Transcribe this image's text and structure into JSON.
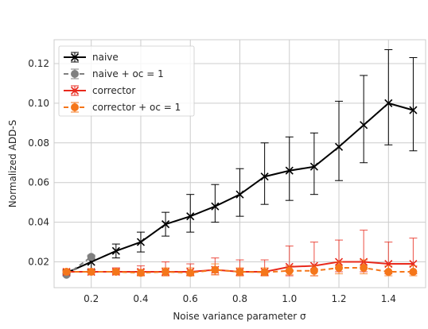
{
  "chart_data": {
    "type": "line",
    "xlabel": "Noise variance parameter σ",
    "ylabel": "Normalized ADD-S",
    "xlim": [
      0.05,
      1.55
    ],
    "ylim": [
      0.007,
      0.132
    ],
    "xticks": [
      0.2,
      0.4,
      0.6,
      0.8,
      1.0,
      1.2,
      1.4
    ],
    "xtick_labels": [
      "0.2",
      "0.4",
      "0.6",
      "0.8",
      "1.0",
      "1.2",
      "1.4"
    ],
    "yticks": [
      0.02,
      0.04,
      0.06,
      0.08,
      0.1,
      0.12
    ],
    "ytick_labels": [
      "0.02",
      "0.04",
      "0.06",
      "0.08",
      "0.10",
      "0.12"
    ],
    "grid": true,
    "legend_position": "top-left",
    "series": [
      {
        "name": "naive",
        "color": "#000000",
        "linestyle": "solid",
        "marker": "x",
        "x": [
          0.1,
          0.2,
          0.3,
          0.4,
          0.5,
          0.6,
          0.7,
          0.8,
          0.9,
          1.0,
          1.1,
          1.2,
          1.3,
          1.4,
          1.5
        ],
        "y": [
          0.0145,
          0.02,
          0.0255,
          0.03,
          0.039,
          0.043,
          0.048,
          0.054,
          0.063,
          0.066,
          0.068,
          0.078,
          0.089,
          0.1,
          0.0965
        ],
        "err_low": [
          0.014,
          0.016,
          0.022,
          0.025,
          0.033,
          0.035,
          0.04,
          0.043,
          0.049,
          0.051,
          0.054,
          0.061,
          0.07,
          0.079,
          0.076
        ],
        "err_high": [
          0.0155,
          0.023,
          0.029,
          0.035,
          0.045,
          0.054,
          0.059,
          0.067,
          0.08,
          0.083,
          0.085,
          0.101,
          0.114,
          0.127,
          0.123
        ]
      },
      {
        "name": "naive + oc = 1",
        "color": "#808080",
        "linestyle": "dashed",
        "marker": "o",
        "x": [
          0.1,
          0.2
        ],
        "y": [
          0.0135,
          0.0225
        ],
        "err_low": [
          0.013,
          0.0215
        ],
        "err_high": [
          0.014,
          0.0235
        ]
      },
      {
        "name": "corrector",
        "color": "#e8291c",
        "linestyle": "solid",
        "marker": "x",
        "x": [
          0.1,
          0.2,
          0.3,
          0.4,
          0.5,
          0.6,
          0.7,
          0.8,
          0.9,
          1.0,
          1.1,
          1.2,
          1.3,
          1.4,
          1.5
        ],
        "y": [
          0.015,
          0.015,
          0.015,
          0.015,
          0.015,
          0.015,
          0.016,
          0.015,
          0.015,
          0.0175,
          0.018,
          0.02,
          0.02,
          0.019,
          0.019
        ],
        "err_low": [
          0.0145,
          0.0145,
          0.014,
          0.013,
          0.013,
          0.013,
          0.0135,
          0.013,
          0.013,
          0.013,
          0.013,
          0.015,
          0.015,
          0.014,
          0.014
        ],
        "err_high": [
          0.0155,
          0.0155,
          0.017,
          0.018,
          0.02,
          0.019,
          0.022,
          0.021,
          0.021,
          0.028,
          0.03,
          0.031,
          0.036,
          0.03,
          0.032
        ]
      },
      {
        "name": "corrector + oc = 1",
        "color": "#f5761a",
        "linestyle": "dashed",
        "marker": "o",
        "x": [
          0.1,
          0.2,
          0.3,
          0.4,
          0.5,
          0.6,
          0.7,
          0.8,
          0.9,
          1.0,
          1.1,
          1.2,
          1.3,
          1.4,
          1.5
        ],
        "y": [
          0.015,
          0.015,
          0.015,
          0.0145,
          0.015,
          0.0145,
          0.016,
          0.015,
          0.0148,
          0.0155,
          0.0155,
          0.017,
          0.017,
          0.015,
          0.015
        ],
        "err_low": [
          0.0145,
          0.0145,
          0.014,
          0.013,
          0.013,
          0.013,
          0.0135,
          0.013,
          0.013,
          0.0135,
          0.013,
          0.014,
          0.014,
          0.013,
          0.013
        ],
        "err_high": [
          0.0155,
          0.0155,
          0.016,
          0.016,
          0.017,
          0.017,
          0.019,
          0.017,
          0.017,
          0.018,
          0.018,
          0.02,
          0.021,
          0.018,
          0.018
        ]
      }
    ]
  }
}
